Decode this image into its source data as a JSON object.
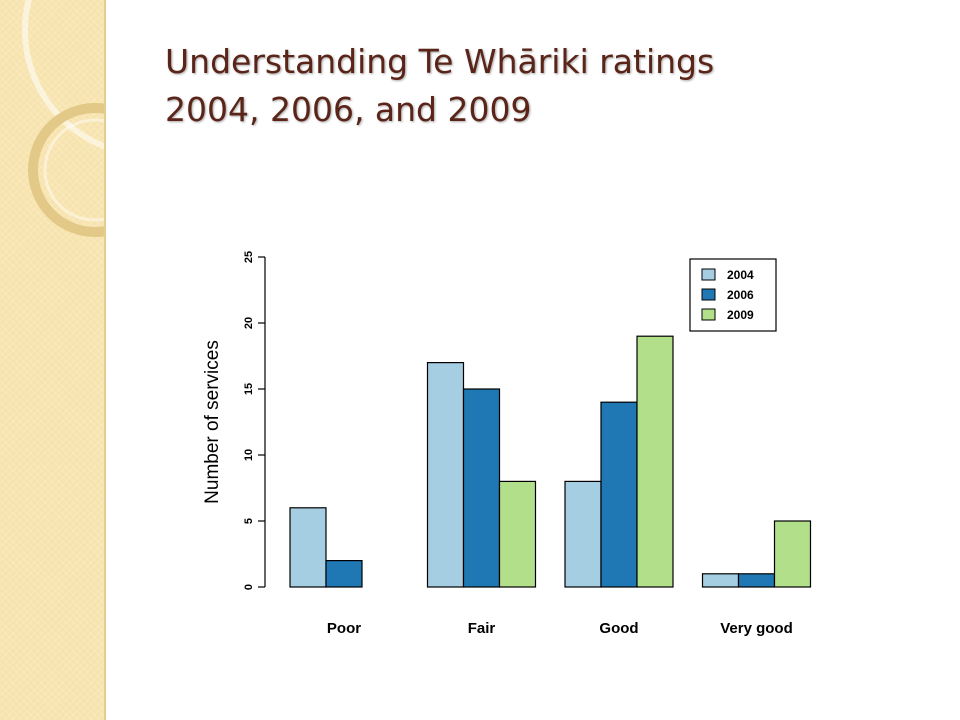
{
  "slide": {
    "title_line1": "Understanding Te Whāriki ratings",
    "title_line2": "2004, 2006, and 2009"
  },
  "colors": {
    "title": "#5a2418",
    "strip": "#f7e3ad",
    "series": [
      "#a6cee3",
      "#1f78b4",
      "#b2df8a"
    ]
  },
  "chart_data": {
    "type": "bar",
    "title": "",
    "xlabel": "",
    "ylabel": "Number of services",
    "categories": [
      "Poor",
      "Fair",
      "Good",
      "Very good"
    ],
    "series": [
      {
        "name": "2004",
        "values": [
          6,
          17,
          8,
          1
        ]
      },
      {
        "name": "2006",
        "values": [
          2,
          15,
          14,
          1
        ]
      },
      {
        "name": "2009",
        "values": [
          0,
          8,
          19,
          5
        ]
      }
    ],
    "ylim": [
      0,
      25
    ],
    "yticks": [
      0,
      5,
      10,
      15,
      20,
      25
    ],
    "grid": false,
    "legend_position": "top-right"
  }
}
